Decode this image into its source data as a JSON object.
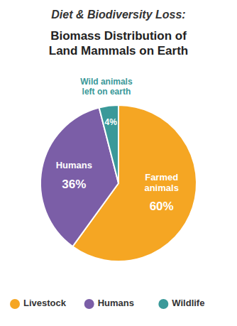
{
  "chart_data": {
    "type": "pie",
    "title": "Diet & Biodiversity Loss:",
    "subtitle": "Biomass Distribution of\nLand Mammals on Earth",
    "categories": [
      "Livestock",
      "Humans",
      "Wildlife"
    ],
    "values": [
      60,
      36,
      4
    ],
    "value_labels": [
      "60%",
      "36%",
      "4%"
    ],
    "labels": [
      "Farmed\nanimals",
      "Humans",
      null
    ],
    "colors": [
      "#F5A623",
      "#7B5EA7",
      "#3A9999"
    ],
    "annotations": [
      "Wild animals\nleft on earth"
    ],
    "data_labels": true
  }
}
